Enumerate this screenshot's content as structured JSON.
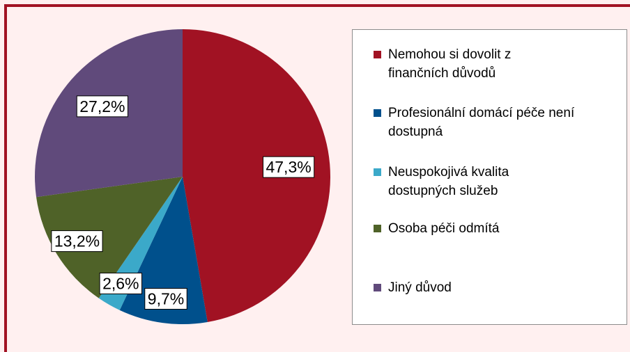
{
  "chart_data": {
    "type": "pie",
    "categories": [
      "Nemohou si dovolit z finančních důvodů",
      "Profesionální domácí péče není dostupná",
      "Neuspokojivá kvalita dostupných služeb",
      "Osoba péči odmítá",
      "Jiný důvod"
    ],
    "values": [
      47.3,
      9.7,
      2.6,
      13.2,
      27.2
    ],
    "value_labels": [
      "47,3%",
      "9,7%",
      "2,6%",
      "13,2%",
      "27,2%"
    ],
    "colors": [
      "#a11223",
      "#00508c",
      "#3ba9c9",
      "#4f6228",
      "#604a7b"
    ]
  }
}
